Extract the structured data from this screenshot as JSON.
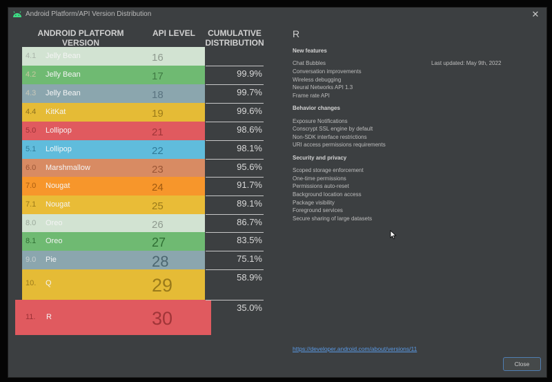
{
  "window": {
    "title": "Android Platform/API Version Distribution",
    "close_glyph": "✕"
  },
  "table": {
    "headers": {
      "platform": [
        "ANDROID PLATFORM",
        "VERSION"
      ],
      "api": "API LEVEL",
      "cumulative": [
        "CUMULATIVE",
        "DISTRIBUTION"
      ]
    },
    "rows": [
      {
        "version": "4.1",
        "name": "Jelly Bean",
        "api": "16",
        "cumulative": "",
        "color": "#d2e3d2",
        "text_color": "#aab4aa",
        "api_color": "#8f9a8f"
      },
      {
        "version": "4.2",
        "name": "Jelly Bean",
        "api": "17",
        "cumulative": "99.9%",
        "color": "#6fba72",
        "text_color": "#c8c8a0",
        "api_color": "#3f7a43"
      },
      {
        "version": "4.3",
        "name": "Jelly Bean",
        "api": "18",
        "cumulative": "99.7%",
        "color": "#8ba6ae",
        "text_color": "#c8c8b8",
        "api_color": "#5a7480"
      },
      {
        "version": "4.4",
        "name": "KitKat",
        "api": "19",
        "cumulative": "99.6%",
        "color": "#e5bb36",
        "text_color": "#8a7020",
        "api_color": "#9a7a1a"
      },
      {
        "version": "5.0",
        "name": "Lollipop",
        "api": "21",
        "cumulative": "98.6%",
        "color": "#e05a5f",
        "text_color": "#9a3035",
        "api_color": "#a03538"
      },
      {
        "version": "5.1",
        "name": "Lollipop",
        "api": "22",
        "cumulative": "98.1%",
        "color": "#60bcdc",
        "text_color": "#2e7a98",
        "api_color": "#2f7a98"
      },
      {
        "version": "6.0",
        "name": "Marshmallow",
        "api": "23",
        "cumulative": "95.6%",
        "color": "#d88b63",
        "text_color": "#9a5535",
        "api_color": "#9a5535"
      },
      {
        "version": "7.0",
        "name": "Nougat",
        "api": "24",
        "cumulative": "91.7%",
        "color": "#f7962b",
        "text_color": "#a85c10",
        "api_color": "#a05a10"
      },
      {
        "version": "7.1",
        "name": "Nougat",
        "api": "25",
        "cumulative": "89.1%",
        "color": "#e9bc37",
        "text_color": "#9a7a1a",
        "api_color": "#9a7a1a"
      },
      {
        "version": "8.0",
        "name": "Oreo",
        "api": "26",
        "cumulative": "86.7%",
        "color": "#d2e3d2",
        "text_color": "#9aa89a",
        "api_color": "#8f9a8f"
      },
      {
        "version": "8.1",
        "name": "Oreo",
        "api": "27",
        "cumulative": "83.5%",
        "color": "#6fba72",
        "text_color": "#2f6e33",
        "api_color": "#2f6e33"
      },
      {
        "version": "9.0",
        "name": "Pie",
        "api": "28",
        "cumulative": "75.1%",
        "color": "#8ba6ae",
        "text_color": "#c8d0d0",
        "api_color": "#4b6670"
      },
      {
        "version": "10.",
        "name": "Q",
        "api": "29",
        "cumulative": "58.9%",
        "color": "#e5bb36",
        "text_color": "#9a7a1a",
        "api_color": "#9a7a1a"
      },
      {
        "version": "11.",
        "name": "R",
        "api": "30",
        "cumulative": "35.0%",
        "color": "#e05a5f",
        "text_color": "#9a3035",
        "api_color": "#a03538"
      }
    ]
  },
  "details": {
    "title": "R",
    "last_updated": "Last updated: May 9th, 2022",
    "sections": [
      {
        "title": "New features",
        "items": [
          "Chat Bubbles",
          "Conversation improvements",
          "Wireless debugging",
          "Neural Networks API 1.3",
          "Frame rate API"
        ]
      },
      {
        "title": "Behavior changes",
        "items": [
          "Exposure Notifications",
          "Conscrypt SSL engine by default",
          "Non-SDK interface restrictions",
          "URI access permissions requirements"
        ]
      },
      {
        "title": "Security and privacy",
        "items": [
          "Scoped storage enforcement",
          "One-time permissions",
          "Permissions auto-reset",
          "Background location access",
          "Package visibility",
          "Foreground services",
          "Secure sharing of large datasets"
        ]
      }
    ],
    "link": "https://developer.android.com/about/versions/11"
  },
  "footer": {
    "close_label": "Close"
  },
  "colors": {
    "dialog_bg": "#3c3f41",
    "link": "#5a9ae6",
    "button_border": "#4f7fb4"
  }
}
